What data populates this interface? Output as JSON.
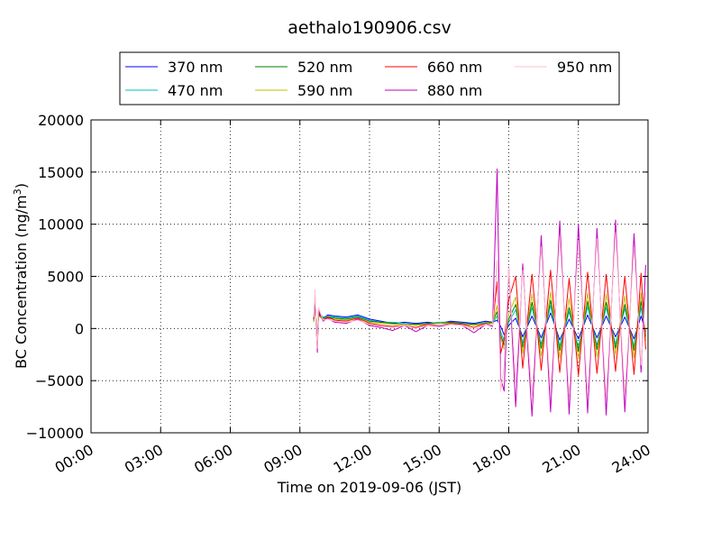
{
  "chart_data": {
    "type": "line",
    "title": "aethalo190906.csv",
    "xlabel": "Time on 2019-09-06 (JST)",
    "ylabel_main": "BC Concentration (ng/m",
    "ylabel_sup": "3",
    "ylabel_close": ")",
    "x_unit": "hours",
    "xlim": [
      0,
      24
    ],
    "ylim": [
      -10000,
      20000
    ],
    "x_ticks": [
      0,
      3,
      6,
      9,
      12,
      15,
      18,
      21,
      24
    ],
    "x_tick_labels": [
      "00:00",
      "03:00",
      "06:00",
      "09:00",
      "12:00",
      "15:00",
      "18:00",
      "21:00",
      "24:00"
    ],
    "y_ticks": [
      -10000,
      -5000,
      0,
      5000,
      10000,
      15000,
      20000
    ],
    "y_tick_labels": [
      "−10000",
      "−5000",
      "0",
      "5000",
      "10000",
      "15000",
      "20000"
    ],
    "grid": true,
    "legend_position": "top-center",
    "legend_columns": 4,
    "series": [
      {
        "name": "370 nm",
        "color": "#0000ff",
        "x": [
          9.6,
          9.65,
          9.7,
          9.75,
          9.8,
          10.0,
          10.2,
          10.5,
          11.0,
          11.5,
          12.0,
          12.5,
          13.0,
          13.5,
          14.0,
          14.5,
          15.0,
          15.5,
          16.0,
          16.5,
          17.0,
          17.3,
          17.5,
          17.65,
          17.8,
          18.0,
          18.3,
          18.6,
          19.0,
          19.4,
          19.8,
          20.2,
          20.6,
          21.0,
          21.4,
          21.8,
          22.2,
          22.6,
          23.0,
          23.4,
          23.7,
          23.9
        ],
        "y": [
          800,
          2600,
          600,
          -1200,
          1400,
          1000,
          1300,
          1200,
          1100,
          1300,
          900,
          700,
          500,
          600,
          500,
          600,
          500,
          700,
          600,
          500,
          700,
          600,
          800,
          200,
          -600,
          300,
          1000,
          -800,
          1200,
          -900,
          1500,
          -1100,
          900,
          -1000,
          1300,
          -900,
          1200,
          -800,
          1100,
          -1000,
          1200,
          -300
        ]
      },
      {
        "name": "470 nm",
        "color": "#00bfbf",
        "x": [
          9.6,
          9.65,
          9.7,
          9.75,
          9.8,
          10.0,
          10.2,
          10.5,
          11.0,
          11.5,
          12.0,
          12.5,
          13.0,
          13.5,
          14.0,
          14.5,
          15.0,
          15.5,
          16.0,
          16.5,
          17.0,
          17.3,
          17.5,
          17.65,
          17.8,
          18.0,
          18.3,
          18.6,
          19.0,
          19.4,
          19.8,
          20.2,
          20.6,
          21.0,
          21.4,
          21.8,
          22.2,
          22.6,
          23.0,
          23.4,
          23.7,
          23.9
        ],
        "y": [
          900,
          2800,
          500,
          -1400,
          1500,
          1100,
          1200,
          1100,
          1000,
          1200,
          800,
          600,
          600,
          500,
          400,
          500,
          600,
          600,
          500,
          400,
          600,
          500,
          1200,
          -300,
          -1200,
          600,
          1800,
          -1400,
          2000,
          -1500,
          2200,
          -1700,
          1600,
          -1800,
          2100,
          -1600,
          2000,
          -1500,
          1900,
          -1700,
          2000,
          -600
        ]
      },
      {
        "name": "520 nm",
        "color": "#008000",
        "x": [
          9.6,
          9.65,
          9.7,
          9.75,
          9.8,
          10.0,
          10.2,
          10.5,
          11.0,
          11.5,
          12.0,
          12.5,
          13.0,
          13.5,
          14.0,
          14.5,
          15.0,
          15.5,
          16.0,
          16.5,
          17.0,
          17.3,
          17.5,
          17.65,
          17.8,
          18.0,
          18.3,
          18.6,
          19.0,
          19.4,
          19.8,
          20.2,
          20.6,
          21.0,
          21.4,
          21.8,
          22.2,
          22.6,
          23.0,
          23.4,
          23.7,
          23.9
        ],
        "y": [
          700,
          2700,
          400,
          -1500,
          1300,
          1000,
          1100,
          1000,
          900,
          1100,
          700,
          600,
          500,
          400,
          400,
          500,
          500,
          600,
          500,
          400,
          500,
          600,
          1600,
          -600,
          -1600,
          900,
          2300,
          -1800,
          2500,
          -1900,
          2700,
          -2100,
          2000,
          -2200,
          2600,
          -2000,
          2500,
          -1900,
          2300,
          -2100,
          2600,
          -800
        ]
      },
      {
        "name": "590 nm",
        "color": "#bfbf00",
        "x": [
          9.6,
          9.65,
          9.7,
          9.75,
          9.8,
          10.0,
          10.2,
          10.5,
          11.0,
          11.5,
          12.0,
          12.5,
          13.0,
          13.5,
          14.0,
          14.5,
          15.0,
          15.5,
          16.0,
          16.5,
          17.0,
          17.3,
          17.5,
          17.65,
          17.8,
          18.0,
          18.3,
          18.6,
          19.0,
          19.4,
          19.8,
          20.2,
          20.6,
          21.0,
          21.4,
          21.8,
          22.2,
          22.6,
          23.0,
          23.4,
          23.7,
          23.9
        ],
        "y": [
          600,
          2500,
          300,
          -1600,
          1200,
          900,
          1000,
          900,
          800,
          1000,
          600,
          500,
          400,
          400,
          300,
          400,
          500,
          500,
          400,
          300,
          500,
          500,
          2200,
          -900,
          -2000,
          1400,
          3000,
          -2400,
          3300,
          -2600,
          3500,
          -2800,
          2900,
          -2900,
          3400,
          -2700,
          3300,
          -2500,
          3100,
          -2800,
          3400,
          -1200
        ]
      },
      {
        "name": "660 nm",
        "color": "#ff0000",
        "x": [
          9.6,
          9.65,
          9.7,
          9.75,
          9.8,
          10.0,
          10.2,
          10.5,
          11.0,
          11.5,
          12.0,
          12.5,
          13.0,
          13.5,
          14.0,
          14.5,
          15.0,
          15.5,
          16.0,
          16.5,
          17.0,
          17.3,
          17.5,
          17.65,
          17.8,
          18.0,
          18.3,
          18.6,
          19.0,
          19.4,
          19.8,
          20.2,
          20.6,
          21.0,
          21.4,
          21.8,
          22.2,
          22.6,
          23.0,
          23.4,
          23.7,
          23.9
        ],
        "y": [
          900,
          2900,
          500,
          -1800,
          1600,
          800,
          1100,
          800,
          700,
          1000,
          500,
          300,
          200,
          300,
          100,
          400,
          300,
          500,
          400,
          100,
          500,
          300,
          4500,
          -2400,
          -1000,
          2800,
          5000,
          -3800,
          5200,
          -4000,
          5600,
          -4200,
          4800,
          -4500,
          5400,
          -4300,
          5200,
          -4100,
          5000,
          -4400,
          5300,
          -2000
        ]
      },
      {
        "name": "880 nm",
        "color": "#bf00bf",
        "x": [
          9.6,
          9.65,
          9.7,
          9.75,
          9.8,
          10.0,
          10.2,
          10.5,
          11.0,
          11.5,
          12.0,
          12.5,
          13.0,
          13.5,
          14.0,
          14.5,
          15.0,
          15.5,
          16.0,
          16.5,
          17.0,
          17.3,
          17.5,
          17.65,
          17.8,
          18.0,
          18.3,
          18.6,
          19.0,
          19.4,
          19.8,
          20.2,
          20.6,
          21.0,
          21.4,
          21.8,
          22.2,
          22.6,
          23.0,
          23.4,
          23.7,
          23.9
        ],
        "y": [
          1000,
          3200,
          400,
          -2300,
          1800,
          700,
          1000,
          600,
          500,
          900,
          300,
          100,
          -200,
          300,
          -300,
          300,
          200,
          400,
          300,
          -400,
          400,
          200,
          15300,
          -4800,
          -6000,
          5900,
          -7500,
          6200,
          -8400,
          8900,
          -8000,
          10300,
          -8200,
          10000,
          -8100,
          9600,
          -8300,
          10400,
          -8000,
          9100,
          -4200,
          6100
        ]
      },
      {
        "name": "950 nm",
        "color": "#ffc0cb",
        "x": [
          9.6,
          9.65,
          9.7,
          9.75,
          9.8,
          10.0,
          10.2,
          10.5,
          11.0,
          11.5,
          12.0,
          12.5,
          13.0,
          13.5,
          14.0,
          14.5,
          15.0,
          15.5,
          16.0,
          16.5,
          17.0,
          17.3,
          17.5,
          17.65,
          17.8,
          18.0,
          18.3,
          18.6,
          19.0,
          19.4,
          19.8,
          20.2,
          20.6,
          21.0,
          21.4,
          21.8,
          22.2,
          22.6,
          23.0,
          23.4,
          23.7,
          23.9
        ],
        "y": [
          1100,
          3700,
          300,
          -1900,
          2000,
          800,
          900,
          700,
          600,
          800,
          400,
          200,
          100,
          300,
          0,
          300,
          300,
          400,
          300,
          -100,
          400,
          300,
          6500,
          -6000,
          -3500,
          5800,
          -5200,
          5600,
          -6400,
          7800,
          -6200,
          8800,
          -6500,
          8300,
          -6400,
          8600,
          -6600,
          9200,
          -6300,
          7800,
          -3500,
          3500
        ]
      }
    ]
  }
}
